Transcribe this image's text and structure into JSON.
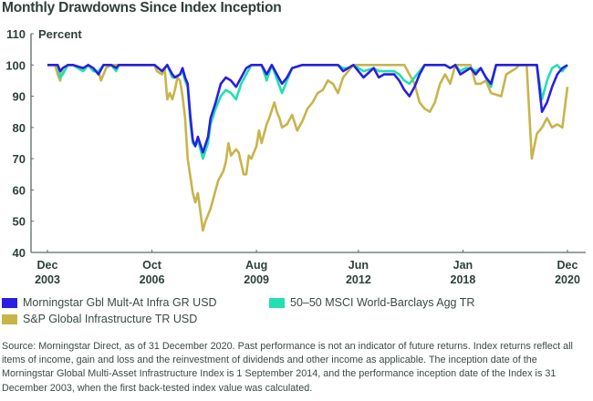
{
  "chart_data": {
    "type": "line",
    "title": "Monthly Drawdowns Since Index Inception",
    "ylabel": "Percent",
    "xlabel": "",
    "ylim": [
      40,
      110
    ],
    "yticks": [
      "40",
      "50",
      "60",
      "70",
      "80",
      "90",
      "100",
      "110"
    ],
    "ytick_values": [
      40,
      50,
      60,
      70,
      80,
      90,
      100,
      110
    ],
    "x_unit": "months since Dec 2003",
    "xlim": [
      0,
      204
    ],
    "xticks": [
      {
        "month": "Dec",
        "year": "2003",
        "x": 0
      },
      {
        "month": "Oct",
        "year": "2006",
        "x": 41
      },
      {
        "month": "Aug",
        "year": "2009",
        "x": 82
      },
      {
        "month": "Jun",
        "year": "2012",
        "x": 122
      },
      {
        "month": "Jan",
        "year": "2018",
        "x": 163
      },
      {
        "month": "Dec",
        "year": "2020",
        "x": 204
      }
    ],
    "grid": false,
    "legend_position": "bottom",
    "series": [
      {
        "name": "Morningstar Gbl Mult-At Infra GR USD",
        "color": "#2a1fe0",
        "x": [
          0,
          4,
          5,
          6,
          8,
          10,
          14,
          16,
          18,
          20,
          22,
          25,
          27,
          28,
          30,
          33,
          36,
          42,
          45,
          47,
          49,
          50,
          52,
          53,
          54,
          55,
          56,
          57,
          58,
          59,
          61,
          63,
          64,
          66,
          68,
          70,
          72,
          74,
          76,
          78,
          80,
          82,
          84,
          86,
          88,
          92,
          94,
          96,
          100,
          104,
          108,
          112,
          114,
          116,
          118,
          120,
          124,
          128,
          130,
          132,
          136,
          138,
          140,
          142,
          144,
          146,
          148,
          150,
          152,
          154,
          156,
          158,
          160,
          162,
          164,
          166,
          168,
          170,
          172,
          174,
          176,
          178,
          180,
          182,
          184,
          186,
          188,
          190,
          192,
          194,
          196,
          198,
          200,
          202,
          204
        ],
        "y": [
          100,
          100,
          98,
          99,
          100,
          100,
          99,
          100,
          99,
          97,
          100,
          100,
          99,
          100,
          100,
          100,
          100,
          100,
          98,
          100,
          97,
          96,
          97,
          99,
          96,
          94,
          84,
          76,
          74,
          77,
          72,
          77,
          83,
          88,
          94,
          96,
          95,
          93,
          96,
          99,
          100,
          100,
          100,
          97,
          100,
          94,
          96,
          99,
          100,
          100,
          100,
          100,
          100,
          98,
          99,
          100,
          96,
          99,
          96,
          97,
          97,
          95,
          92,
          90,
          93,
          97,
          100,
          100,
          100,
          100,
          100,
          99,
          100,
          97,
          98,
          99,
          97,
          99,
          96,
          94,
          100,
          100,
          100,
          100,
          100,
          100,
          100,
          100,
          100,
          85,
          88,
          93,
          97,
          99,
          100
        ]
      },
      {
        "name": "50–50 MSCI World-Barclays Agg TR",
        "color": "#22e0b0",
        "x": [
          0,
          4,
          5,
          6,
          8,
          10,
          14,
          16,
          18,
          20,
          22,
          25,
          27,
          28,
          30,
          33,
          36,
          42,
          45,
          47,
          49,
          50,
          52,
          53,
          54,
          55,
          56,
          57,
          58,
          59,
          61,
          63,
          64,
          66,
          68,
          70,
          72,
          74,
          76,
          78,
          80,
          82,
          84,
          86,
          88,
          92,
          94,
          96,
          100,
          104,
          108,
          112,
          114,
          116,
          118,
          120,
          124,
          128,
          130,
          132,
          136,
          138,
          140,
          142,
          144,
          146,
          148,
          150,
          152,
          154,
          156,
          158,
          160,
          162,
          164,
          166,
          168,
          170,
          172,
          174,
          176,
          178,
          180,
          182,
          184,
          186,
          188,
          190,
          192,
          194,
          196,
          198,
          200,
          202,
          204
        ],
        "y": [
          100,
          100,
          96,
          97,
          100,
          100,
          98,
          100,
          98,
          98,
          100,
          100,
          98,
          100,
          100,
          100,
          100,
          100,
          98,
          100,
          96,
          96,
          97,
          98,
          95,
          93,
          82,
          75,
          74,
          76,
          70,
          75,
          81,
          86,
          90,
          92,
          91,
          89,
          94,
          97,
          100,
          100,
          100,
          95,
          100,
          91,
          95,
          99,
          100,
          100,
          100,
          100,
          100,
          99,
          99,
          100,
          98,
          99,
          98,
          98,
          98,
          97,
          95,
          94,
          96,
          98,
          100,
          100,
          100,
          100,
          100,
          99,
          100,
          98,
          99,
          99,
          98,
          99,
          96,
          93,
          100,
          100,
          100,
          100,
          100,
          100,
          100,
          100,
          100,
          89,
          95,
          99,
          100,
          98,
          100
        ]
      },
      {
        "name": "S&P Global Infrastructure TR USD",
        "color": "#c8b44a",
        "x": [
          0,
          3,
          4,
          5,
          6,
          8,
          10,
          14,
          16,
          18,
          20,
          21,
          23,
          25,
          27,
          30,
          33,
          36,
          42,
          43,
          45,
          46,
          47,
          48,
          49,
          50,
          51,
          52,
          53,
          54,
          55,
          57,
          58,
          59,
          61,
          62,
          64,
          66,
          67,
          69,
          70,
          71,
          72,
          74,
          75,
          77,
          78,
          79,
          80,
          82,
          83,
          84,
          86,
          87,
          89,
          90,
          91,
          92,
          94,
          96,
          98,
          100,
          102,
          104,
          106,
          108,
          110,
          112,
          114,
          116,
          118,
          120,
          124,
          128,
          136,
          140,
          142,
          144,
          146,
          148,
          150,
          152,
          154,
          156,
          158,
          160,
          166,
          168,
          170,
          172,
          174,
          178,
          180,
          182,
          184,
          185,
          186,
          188,
          190,
          192,
          194,
          196,
          198,
          200,
          202,
          204
        ],
        "y": [
          100,
          100,
          97,
          95,
          99,
          100,
          100,
          98,
          100,
          98,
          98,
          95,
          99,
          100,
          100,
          100,
          100,
          100,
          100,
          98,
          97,
          99,
          89,
          91,
          89,
          92,
          96,
          95,
          90,
          83,
          70,
          59,
          56,
          59,
          47,
          50,
          54,
          60,
          63,
          66,
          69,
          75,
          71,
          73,
          72,
          65,
          65,
          71,
          70,
          74,
          79,
          75,
          81,
          83,
          88,
          85,
          83,
          80,
          81,
          84,
          79,
          82,
          86,
          88,
          91,
          92,
          95,
          94,
          91,
          96,
          98,
          100,
          100,
          100,
          100,
          100,
          97,
          94,
          88,
          86,
          85,
          88,
          94,
          97,
          94,
          100,
          100,
          94,
          94,
          95,
          91,
          90,
          97,
          98,
          99,
          100,
          100,
          100,
          70,
          78,
          80,
          83,
          80,
          81,
          80,
          93
        ]
      }
    ]
  },
  "legend": {
    "items": [
      {
        "label": "Morningstar Gbl Mult-At Infra GR USD",
        "color": "#2a1fe0"
      },
      {
        "label": "50–50 MSCI World-Barclays Agg TR",
        "color": "#22e0b0"
      },
      {
        "label": "S&P Global Infrastructure TR USD",
        "color": "#c8b44a"
      }
    ]
  },
  "footnote": "Source: Morningstar Direct, as of 31 December 2020. Past performance is not an indicator of future returns. Index returns reflect all items of income, gain and loss and the reinvestment of dividends and other income as applicable. The inception date of the Morningstar Global Multi-Asset Infrastructure Index is 1 September 2014, and the performance inception date of the Index is 31 December 2003, when the first back-tested index value was calculated."
}
